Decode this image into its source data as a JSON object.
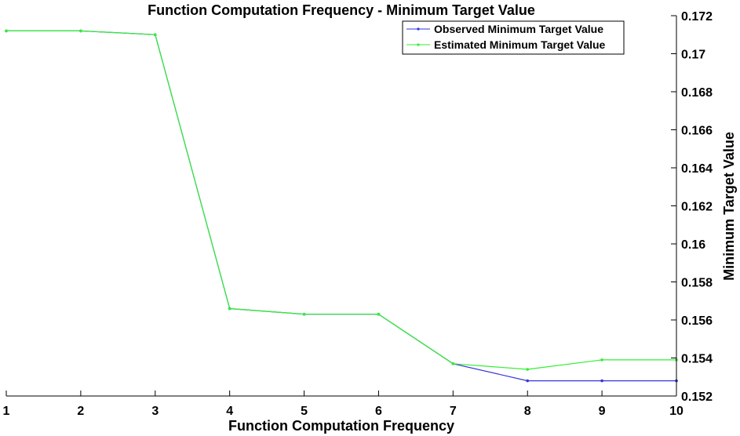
{
  "chart_data": {
    "type": "line",
    "title": "Function Computation Frequency - Minimum Target Value",
    "xlabel": "Function Computation Frequency",
    "ylabel": "Minimum Target Value",
    "xlim": [
      1,
      10
    ],
    "ylim": [
      0.152,
      0.172
    ],
    "x": [
      1,
      2,
      3,
      4,
      5,
      6,
      7,
      8,
      9,
      10
    ],
    "xticks": [
      "1",
      "2",
      "3",
      "4",
      "5",
      "6",
      "7",
      "8",
      "9",
      "10"
    ],
    "yticks": [
      0.152,
      0.154,
      0.156,
      0.158,
      0.16,
      0.162,
      0.164,
      0.166,
      0.168,
      0.17,
      0.172
    ],
    "ytick_labels": [
      "0.152",
      "0.154",
      "0.156",
      "0.158",
      "0.16",
      "0.162",
      "0.164",
      "0.166",
      "0.168",
      "0.17",
      "0.172"
    ],
    "grid": false,
    "legend_position": "top-right",
    "series": [
      {
        "name": "Observed Minimum Target Value",
        "color": "#3333dd",
        "values": [
          0.1712,
          0.1712,
          0.171,
          0.1566,
          0.1563,
          0.1563,
          0.1537,
          0.1528,
          0.1528,
          0.1528
        ]
      },
      {
        "name": "Estimated Minimum Target Value",
        "color": "#33ee33",
        "values": [
          0.1712,
          0.1712,
          0.171,
          0.1566,
          0.1563,
          0.1563,
          0.1537,
          0.1534,
          0.1539,
          0.1539
        ]
      }
    ]
  }
}
